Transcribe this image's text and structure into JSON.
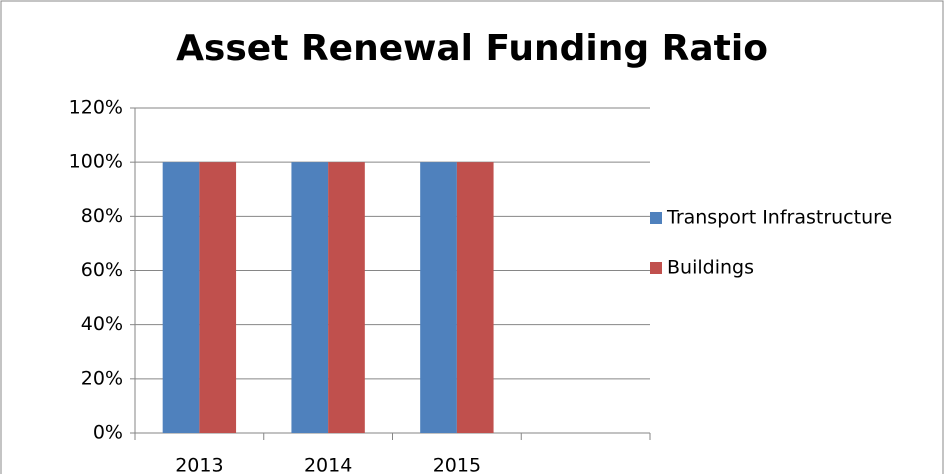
{
  "chart_data": {
    "type": "bar",
    "title": "Asset Renewal Funding Ratio",
    "categories": [
      "2013",
      "2014",
      "2015",
      null
    ],
    "series": [
      {
        "name": "Transport Infrastructure",
        "color": "#4f81bd",
        "values": [
          100,
          100,
          100,
          null
        ]
      },
      {
        "name": "Buildings",
        "color": "#c0504d",
        "values": [
          100,
          100,
          100,
          null
        ]
      }
    ],
    "ylim": [
      0,
      120
    ],
    "yticks": [
      {
        "value": 0,
        "label": "0%"
      },
      {
        "value": 20,
        "label": "20%"
      },
      {
        "value": 40,
        "label": "40%"
      },
      {
        "value": 60,
        "label": "60%"
      },
      {
        "value": 80,
        "label": "80%"
      },
      {
        "value": 100,
        "label": "100%"
      },
      {
        "value": 120,
        "label": "120%"
      }
    ],
    "grid": true,
    "legend": "right"
  }
}
